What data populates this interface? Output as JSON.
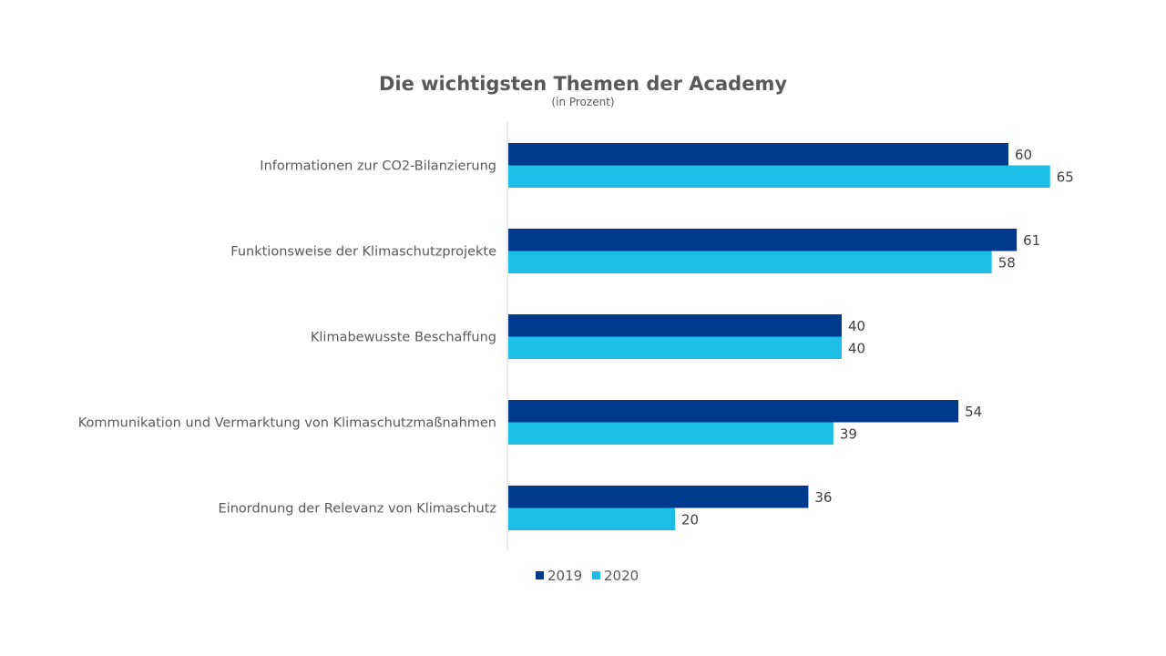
{
  "chart_data": {
    "type": "bar",
    "orientation": "horizontal",
    "title": "Die wichtigsten Themen der Academy",
    "subtitle": "(in Prozent)",
    "categories": [
      "Informationen zur CO2-Bilanzierung",
      "Funktionsweise der Klimaschutzprojekte",
      "Klimabewusste Beschaffung",
      "Kommunikation und Vermarktung von Klimaschutzmaßnahmen",
      "Einordnung der Relevanz von Klimaschutz"
    ],
    "series": [
      {
        "name": "2019",
        "color": "#003A8F",
        "values": [
          60,
          61,
          40,
          54,
          36
        ]
      },
      {
        "name": "2020",
        "color": "#1EBFE7",
        "values": [
          65,
          58,
          40,
          39,
          20
        ]
      }
    ],
    "xlim": [
      0,
      70
    ],
    "grid": false,
    "legend_position": "bottom"
  }
}
